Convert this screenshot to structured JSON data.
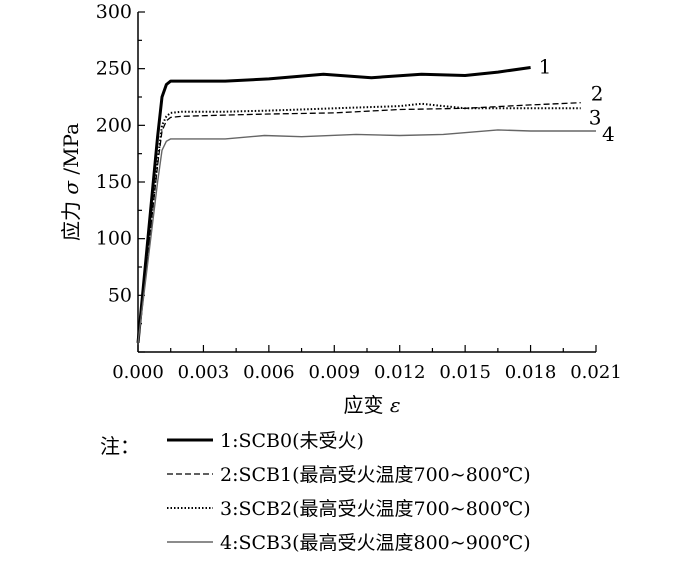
{
  "chart_data": {
    "type": "line",
    "ylabel_cn": "应力",
    "ylabel_symbol": "σ",
    "ylabel_unit": "/MPa",
    "xlabel_cn": "应变",
    "xlabel_symbol": "ε",
    "xlim": [
      0,
      0.021
    ],
    "ylim": [
      0,
      300
    ],
    "x_ticks": [
      "0.000",
      "0.003",
      "0.006",
      "0.009",
      "0.012",
      "0.015",
      "0.018",
      "0.021"
    ],
    "y_ticks": [
      "50",
      "100",
      "150",
      "200",
      "250",
      "300"
    ],
    "grid": false,
    "series": [
      {
        "name": "1",
        "style": "solid-thick",
        "color": "#000000",
        "x": [
          0,
          0.0009,
          0.0011,
          0.0013,
          0.0015,
          0.002,
          0.004,
          0.006,
          0.0085,
          0.0107,
          0.013,
          0.015,
          0.0165,
          0.018
        ],
        "y": [
          8,
          190,
          225,
          236,
          239,
          239,
          239,
          241,
          245,
          242,
          245,
          244,
          247,
          251
        ]
      },
      {
        "name": "2",
        "style": "dashed",
        "color": "#000000",
        "x": [
          0,
          0.0009,
          0.0011,
          0.0013,
          0.0015,
          0.002,
          0.004,
          0.006,
          0.009,
          0.012,
          0.015,
          0.018,
          0.0203
        ],
        "y": [
          8,
          165,
          195,
          204,
          207,
          208,
          209,
          210,
          211,
          214,
          215,
          218,
          220
        ]
      },
      {
        "name": "3",
        "style": "dotted",
        "color": "#000000",
        "x": [
          0,
          0.0009,
          0.0011,
          0.0013,
          0.0015,
          0.002,
          0.004,
          0.006,
          0.009,
          0.012,
          0.013,
          0.015,
          0.018,
          0.0203
        ],
        "y": [
          8,
          168,
          200,
          208,
          211,
          212,
          212,
          213,
          215,
          217,
          219,
          215,
          215,
          215
        ]
      },
      {
        "name": "4",
        "style": "solid-thin",
        "color": "#666666",
        "x": [
          0,
          0.0009,
          0.0011,
          0.0013,
          0.0015,
          0.002,
          0.004,
          0.0058,
          0.0075,
          0.01,
          0.012,
          0.014,
          0.0165,
          0.018,
          0.021
        ],
        "y": [
          8,
          150,
          178,
          186,
          188,
          188,
          188,
          191,
          190,
          192,
          191,
          192,
          196,
          195,
          195
        ]
      }
    ],
    "end_labels": [
      "1",
      "2",
      "3",
      "4"
    ]
  },
  "note_label": "注：",
  "legend": [
    {
      "text": "1:SCB0(未受火)",
      "style": "solid-thick"
    },
    {
      "text": "2:SCB1(最高受火温度700~800℃)",
      "style": "dashed"
    },
    {
      "text": "3:SCB2(最高受火温度700~800℃)",
      "style": "dotted"
    },
    {
      "text": "4:SCB3(最高受火温度800~900℃)",
      "style": "solid-thin"
    }
  ]
}
